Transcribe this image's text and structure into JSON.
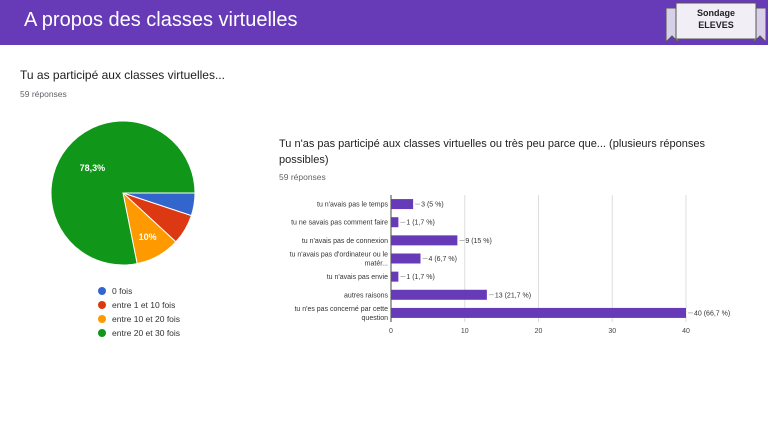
{
  "header": {
    "title": "A propos des classes virtuelles",
    "badge_line1": "Sondage",
    "badge_line2": "ELEVES"
  },
  "colors": {
    "header": "#673ab7",
    "bar": "#673ab7"
  },
  "q1": {
    "title": "Tu as participé aux classes virtuelles...",
    "count": "59 réponses"
  },
  "q2": {
    "title": "Tu n'as pas participé aux classes virtuelles ou très peu parce que... (plusieurs réponses possibles)",
    "count": "59 réponses"
  },
  "chart_data": [
    {
      "type": "pie",
      "labels": [
        "0 fois",
        "entre 1 et 10 fois",
        "entre 10 et 20 fois",
        "entre 20 et 30 fois"
      ],
      "values": [
        5.1,
        6.8,
        10,
        78.3
      ],
      "colors": [
        "#3366cc",
        "#dc3912",
        "#ff9900",
        "#109618"
      ],
      "slice_labels": [
        "",
        "",
        "10%",
        "78,3%"
      ],
      "legend": "bottom"
    },
    {
      "type": "bar",
      "orientation": "horizontal",
      "categories": [
        [
          "tu n'avais pas le temps"
        ],
        [
          "tu ne savais pas comment faire"
        ],
        [
          "tu n'avais pas de connexion"
        ],
        [
          "tu n'avais pas d'ordinateur ou le",
          "matér..."
        ],
        [
          "tu n'avais pas envie"
        ],
        [
          "autres raisons"
        ],
        [
          "tu n'es pas concerné par cette",
          "question"
        ]
      ],
      "values": [
        3,
        1,
        9,
        4,
        1,
        13,
        40
      ],
      "data_labels": [
        "3 (5 %)",
        "1 (1,7 %)",
        "9 (15 %)",
        "4 (6,7 %)",
        "1 (1,7 %)",
        "13 (21,7 %)",
        "40 (66,7 %)"
      ],
      "xlim": [
        0,
        40
      ],
      "xticks": [
        "0",
        "10",
        "20",
        "30",
        "40"
      ],
      "grid": true
    }
  ]
}
